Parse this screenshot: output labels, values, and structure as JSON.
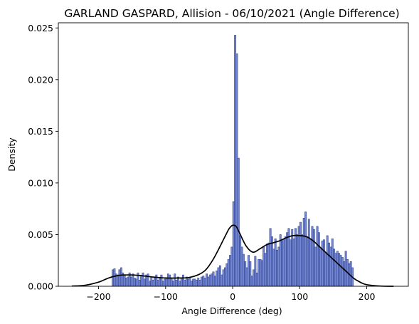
{
  "chart_data": {
    "type": "bar",
    "title": "GARLAND GASPARD, Allision - 06/10/2021 (Angle Difference)",
    "xlabel": "Angle Difference (deg)",
    "ylabel": "Density",
    "xlim": [
      -260,
      262
    ],
    "ylim": [
      0,
      0.0255
    ],
    "xticks": [
      -200,
      -100,
      0,
      100,
      200
    ],
    "xtick_labels": [
      "−200",
      "−100",
      "0",
      "100",
      "200"
    ],
    "yticks": [
      0,
      0.005,
      0.01,
      0.015,
      0.02,
      0.025
    ],
    "ytick_labels": [
      "0.000",
      "0.005",
      "0.010",
      "0.015",
      "0.020",
      "0.025"
    ],
    "grid": false,
    "bar_color": "#5a72cc",
    "bar_edge_color": "#2a3a80",
    "kde_color": "#000000",
    "bins": {
      "start": -180,
      "width": 2.5,
      "density": [
        0.0016,
        0.0017,
        0.0012,
        0.0011,
        0.0016,
        0.0018,
        0.0013,
        0.0011,
        0.0008,
        0.0009,
        0.0013,
        0.0009,
        0.0012,
        0.0008,
        0.0007,
        0.0013,
        0.0006,
        0.001,
        0.0013,
        0.0007,
        0.0011,
        0.0012,
        0.0005,
        0.0009,
        0.0006,
        0.0008,
        0.0011,
        0.0006,
        0.0008,
        0.0011,
        0.0005,
        0.0007,
        0.0007,
        0.0012,
        0.0011,
        0.0007,
        0.0005,
        0.0012,
        0.0006,
        0.0009,
        0.0005,
        0.0008,
        0.0011,
        0.0006,
        0.0009,
        0.0007,
        0.0008,
        0.0005,
        0.0007,
        0.0007,
        0.0006,
        0.0008,
        0.0006,
        0.0009,
        0.001,
        0.0008,
        0.0012,
        0.0009,
        0.0011,
        0.0012,
        0.0014,
        0.001,
        0.0015,
        0.0018,
        0.002,
        0.0011,
        0.0016,
        0.0018,
        0.0022,
        0.0026,
        0.003,
        0.0038,
        0.0082,
        0.0243,
        0.0225,
        0.0124,
        0.0049,
        0.0038,
        0.0031,
        0.0024,
        0.0018,
        0.003,
        0.0024,
        0.001,
        0.0016,
        0.0029,
        0.0013,
        0.0026,
        0.0026,
        0.0025,
        0.0038,
        0.0032,
        0.0041,
        0.0042,
        0.0056,
        0.0048,
        0.0036,
        0.0046,
        0.0035,
        0.0038,
        0.005,
        0.0044,
        0.0046,
        0.0048,
        0.0052,
        0.0056,
        0.0045,
        0.0055,
        0.0046,
        0.0056,
        0.005,
        0.0058,
        0.0062,
        0.005,
        0.0066,
        0.0072,
        0.0048,
        0.0065,
        0.0046,
        0.0058,
        0.0055,
        0.0038,
        0.0058,
        0.0052,
        0.0036,
        0.0044,
        0.0045,
        0.0033,
        0.0049,
        0.0042,
        0.0038,
        0.0046,
        0.0036,
        0.0032,
        0.0034,
        0.0032,
        0.003,
        0.0028,
        0.0024,
        0.0034,
        0.0026,
        0.0022,
        0.0024,
        0.0018
      ]
    },
    "kde": {
      "x": [
        -240,
        -220,
        -200,
        -185,
        -170,
        -155,
        -140,
        -120,
        -100,
        -80,
        -65,
        -50,
        -40,
        -30,
        -20,
        -10,
        -5,
        0,
        5,
        10,
        20,
        30,
        40,
        50,
        60,
        70,
        80,
        90,
        100,
        110,
        120,
        130,
        140,
        150,
        160,
        170,
        180,
        190,
        200,
        220,
        240
      ],
      "y": [
        2e-05,
        0.0001,
        0.0004,
        0.0008,
        0.00105,
        0.0011,
        0.00105,
        0.0009,
        0.0008,
        0.0008,
        0.00085,
        0.00115,
        0.0016,
        0.0025,
        0.0037,
        0.005,
        0.0056,
        0.0059,
        0.0058,
        0.0052,
        0.0039,
        0.0033,
        0.0036,
        0.004,
        0.0042,
        0.0044,
        0.0047,
        0.0049,
        0.0049,
        0.0048,
        0.0044,
        0.0038,
        0.0032,
        0.0026,
        0.002,
        0.0014,
        0.0008,
        0.0004,
        0.00015,
        2e-05,
        0.0
      ]
    }
  }
}
